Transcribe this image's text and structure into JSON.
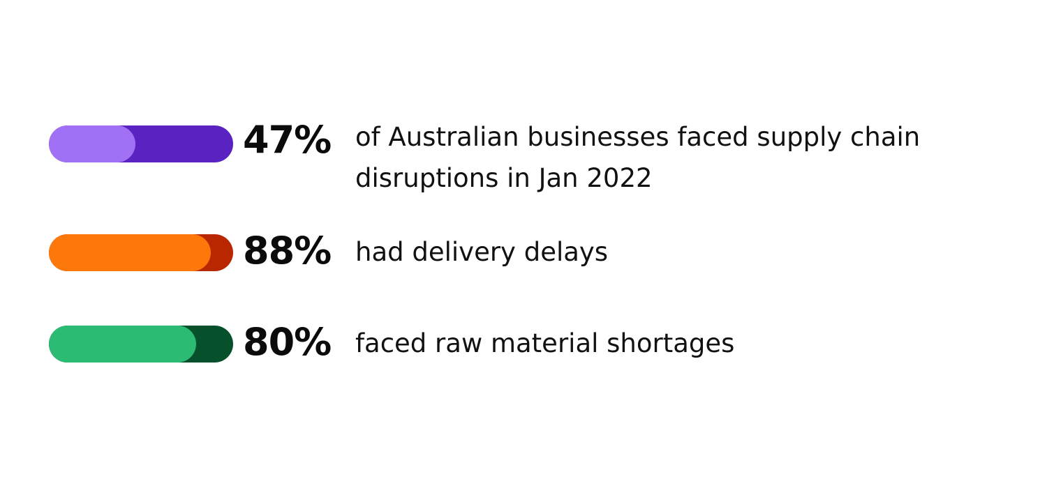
{
  "chart_data": {
    "type": "bar",
    "title": "",
    "categories": [
      "of Australian businesses faced supply chain disruptions in Jan 2022",
      "had delivery delays",
      "faced raw material shortages"
    ],
    "values": [
      47,
      88,
      80
    ],
    "value_labels": [
      "47%",
      "88%",
      "80%"
    ],
    "unit": "%",
    "xlim": [
      0,
      100
    ],
    "grid": false,
    "legend": "none"
  },
  "colors": {
    "row_1_fill": "#a070f5",
    "row_1_track": "#5a22c0",
    "row_2_fill": "#fd780a",
    "row_2_track": "#b82700",
    "row_3_fill": "#2bbb72",
    "row_3_track": "#06502b"
  }
}
